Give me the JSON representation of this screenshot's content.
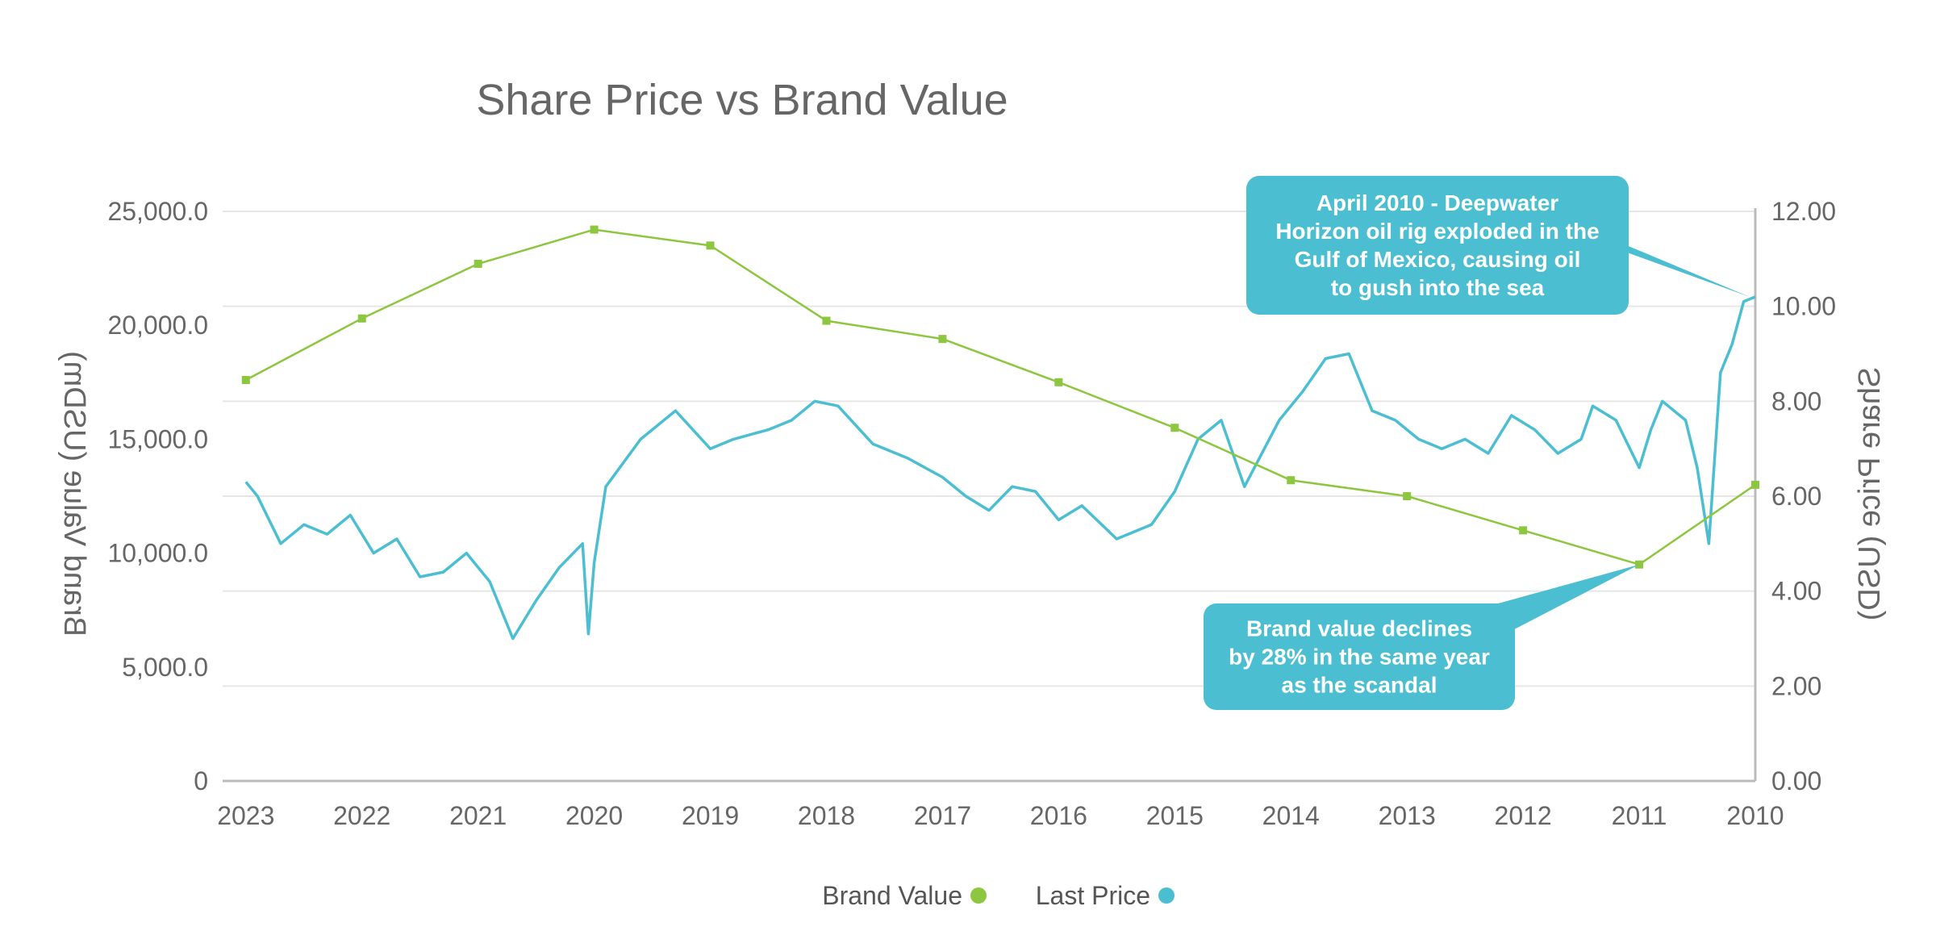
{
  "colors": {
    "last_price": "#4bbfd1",
    "brand_value": "#8dc63f",
    "callout": "#4bbfd1",
    "grid": "#e6e6e6",
    "axis": "#bbbbbb"
  },
  "chart_data": {
    "type": "line",
    "title": "Share Price vs Brand Value",
    "mirrored": true,
    "x_ticks": [
      "2010",
      "2011",
      "2012",
      "2013",
      "2014",
      "2015",
      "2016",
      "2017",
      "2018",
      "2019",
      "2020",
      "2021",
      "2022",
      "2023"
    ],
    "xlim": [
      2010,
      2023.2
    ],
    "y_left": {
      "label": "Share Price (USD)",
      "range": [
        0,
        12
      ],
      "ticks": [
        "0.00",
        "2.00",
        "4.00",
        "6.00",
        "8.00",
        "10.00",
        "12.00"
      ]
    },
    "y_right": {
      "label": "Brand Value (USDm)",
      "range": [
        0,
        25000
      ],
      "ticks": [
        "0",
        "5,000.0",
        "10,000.0",
        "15,000.0",
        "20,000.0",
        "25,000.0"
      ]
    },
    "series": [
      {
        "name": "Last Price",
        "axis": "price",
        "x": [
          2010.0,
          2010.1,
          2010.2,
          2010.3,
          2010.4,
          2010.5,
          2010.6,
          2010.8,
          2010.9,
          2011.0,
          2011.2,
          2011.4,
          2011.5,
          2011.7,
          2011.9,
          2012.1,
          2012.3,
          2012.5,
          2012.7,
          2012.9,
          2013.1,
          2013.3,
          2013.5,
          2013.7,
          2013.9,
          2014.1,
          2014.4,
          2014.6,
          2014.8,
          2015.0,
          2015.2,
          2015.5,
          2015.8,
          2016.0,
          2016.2,
          2016.4,
          2016.6,
          2016.8,
          2017.0,
          2017.3,
          2017.6,
          2017.9,
          2018.1,
          2018.3,
          2018.5,
          2018.8,
          2019.0,
          2019.3,
          2019.6,
          2019.9,
          2020.0,
          2020.05,
          2020.1,
          2020.3,
          2020.5,
          2020.7,
          2020.9,
          2021.1,
          2021.3,
          2021.5,
          2021.7,
          2021.9,
          2022.1,
          2022.3,
          2022.5,
          2022.7,
          2022.9,
          2023.0
        ],
        "y": [
          10.2,
          10.1,
          9.2,
          8.6,
          5.0,
          6.6,
          7.6,
          8.0,
          7.4,
          6.6,
          7.6,
          7.9,
          7.2,
          6.9,
          7.4,
          7.7,
          6.9,
          7.2,
          7.0,
          7.2,
          7.6,
          7.8,
          9.0,
          8.9,
          8.2,
          7.6,
          6.2,
          7.6,
          7.2,
          6.1,
          5.4,
          5.1,
          5.8,
          5.5,
          6.1,
          6.2,
          5.7,
          6.0,
          6.4,
          6.8,
          7.1,
          7.9,
          8.0,
          7.6,
          7.4,
          7.2,
          7.0,
          7.8,
          7.2,
          6.2,
          4.6,
          3.1,
          5.0,
          4.5,
          3.8,
          3.0,
          4.2,
          4.8,
          4.4,
          4.3,
          5.1,
          4.8,
          5.6,
          5.2,
          5.4,
          5.0,
          6.0,
          6.3
        ]
      },
      {
        "name": "Brand Value",
        "axis": "brand",
        "x": [
          2010,
          2011,
          2012,
          2013,
          2014,
          2015,
          2016,
          2017,
          2018,
          2019,
          2020,
          2021,
          2022,
          2023
        ],
        "y": [
          13000,
          9500,
          11000,
          12500,
          13200,
          15500,
          17500,
          19400,
          20200,
          23500,
          24200,
          22700,
          20300,
          17600
        ]
      }
    ],
    "legend": [
      "Last Price",
      "Brand Value"
    ],
    "legend_position": "bottom-center",
    "annotations": [
      {
        "text_lines": [
          "April 2010 - Deepwater",
          "Horizon oil rig exploded in the",
          "Gulf of Mexico, causing oil",
          "to gush into the sea"
        ],
        "points_to": {
          "x": 2010.05,
          "y": 10.2
        }
      },
      {
        "text_lines": [
          "Brand value declines",
          "by 28% in the same year",
          "as the scandal"
        ],
        "points_to": {
          "x": 2011.0,
          "y": 9500
        }
      }
    ]
  }
}
